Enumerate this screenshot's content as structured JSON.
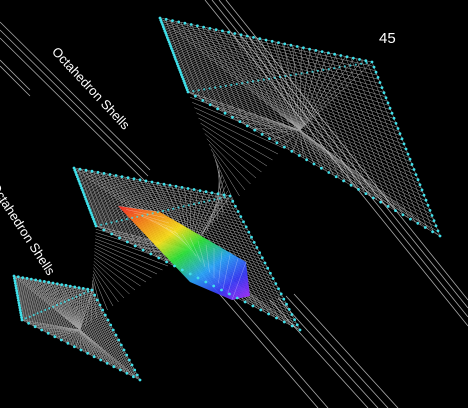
{
  "labels": {
    "upper": "Octahedron Shells",
    "lower": "Octahedron Shells",
    "number": "45"
  },
  "colors": {
    "background": "#000000",
    "mesh": "#d9d9d9",
    "dots": "#3fe0ea",
    "rails": "#c8c8c8"
  }
}
